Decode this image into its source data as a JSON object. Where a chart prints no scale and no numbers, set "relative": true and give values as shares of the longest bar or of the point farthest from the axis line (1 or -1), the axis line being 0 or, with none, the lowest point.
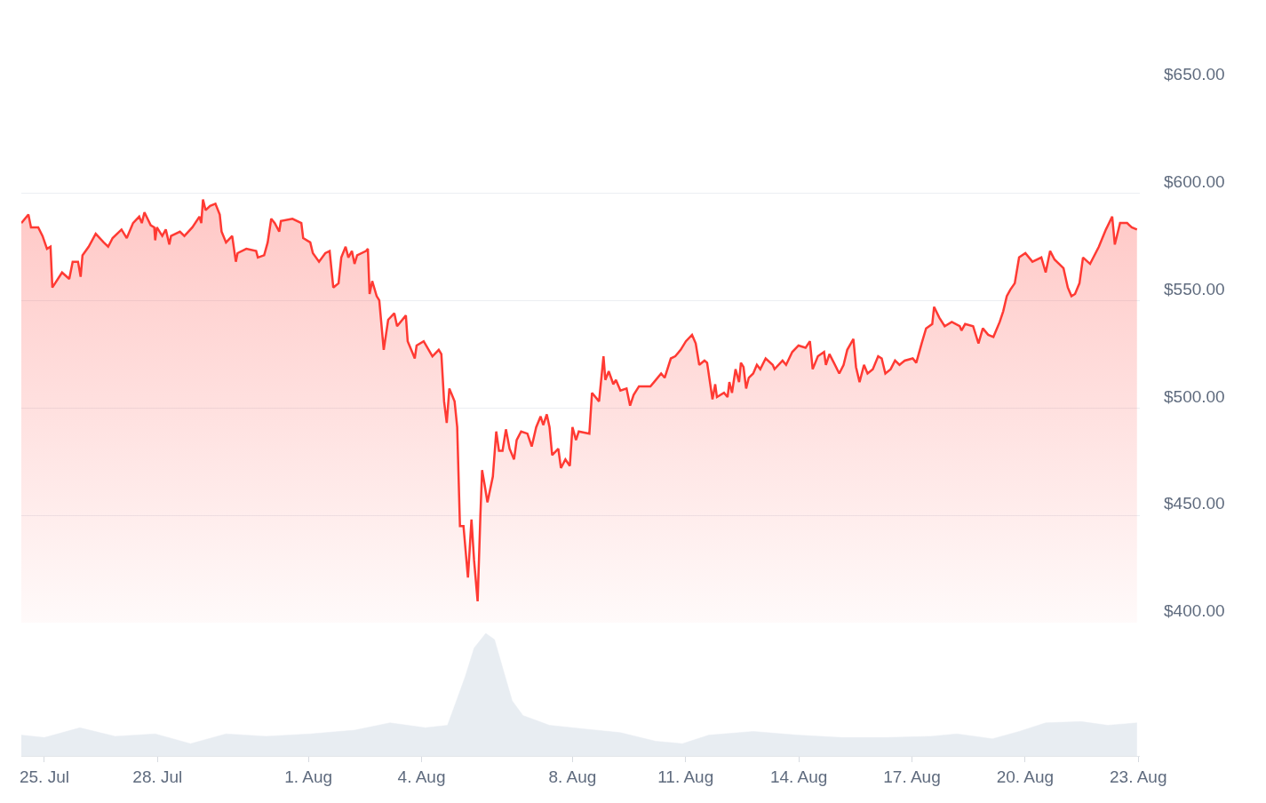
{
  "chart_data": [
    {
      "type": "area",
      "grid": "y",
      "tick_labels": "y",
      "marker": "none",
      "xlim": [
        "--07-24T09:20",
        "--08-23T01:00"
      ],
      "xticks": [
        {
          "value": "--07-25",
          "label": "25. Jul"
        },
        {
          "value": "--07-28",
          "label": "28. Jul"
        },
        {
          "value": "--08-01",
          "label": "1. Aug"
        },
        {
          "value": "--08-04",
          "label": "4. Aug"
        },
        {
          "value": "--08-08",
          "label": "8. Aug"
        },
        {
          "value": "--08-11",
          "label": "11. Aug"
        },
        {
          "value": "--08-14",
          "label": "14. Aug"
        },
        {
          "value": "--08-17",
          "label": "17. Aug"
        },
        {
          "value": "--08-20",
          "label": "20. Aug"
        },
        {
          "value": "--08-23",
          "label": "23. Aug"
        }
      ],
      "ylim": [
        400,
        650
      ],
      "yticks": [
        {
          "value": 400,
          "label": "$400.00"
        },
        {
          "value": 450,
          "label": "$450.00"
        },
        {
          "value": 500,
          "label": "$500.00"
        },
        {
          "value": 550,
          "label": "$550.00"
        },
        {
          "value": 600,
          "label": "$600.00"
        },
        {
          "value": 650,
          "label": "$650.00"
        }
      ],
      "x": [
        "--07-24T09:20",
        "--07-24T13:50",
        "--07-24T15:30",
        "--07-24T20:05",
        "--07-24T22:50",
        "--07-25T01:40",
        "--07-25T03:55",
        "--07-25T05:05",
        "--07-25T11:15",
        "--07-25T15:50",
        "--07-25T18:00",
        "--07-25T21:25",
        "--07-25T23:05",
        "--07-26T00:15",
        "--07-26T04:10",
        "--07-26T08:40",
        "--07-26T13:45",
        "--07-26T16:35",
        "--07-26T19:25",
        "--07-27T01:05",
        "--07-27T04:25",
        "--07-27T08:25",
        "--07-27T12:20",
        "--07-27T14:00",
        "--07-27T15:40",
        "--07-27T19:40",
        "--07-27T21:55",
        "--07-27T22:30",
        "--07-27T23:35",
        "--07-28T03:00",
        "--07-28T05:15",
        "--07-28T07:30",
        "--07-28T08:35",
        "--07-28T14:15",
        "--07-28T17:05",
        "--07-28T22:10",
        "--07-29T02:40",
        "--07-29T03:50",
        "--07-29T04:55",
        "--07-29T06:35",
        "--07-29T09:25",
        "--07-29T12:50",
        "--07-29T15:35",
        "--07-29T16:45",
        "--07-29T19:35",
        "--07-29T23:30",
        "--07-30T01:50",
        "--07-30T02:55",
        "--07-30T08:30",
        "--07-30T14:45",
        "--07-30T15:50",
        "--07-30T19:50",
        "--07-30T22:05",
        "--07-31T00:20",
        "--07-31T02:35",
        "--07-31T05:25",
        "--07-31T06:30",
        "--07-31T13:50",
        "--07-31T19:30",
        "--07-31T20:40",
        "--08-01T01:10",
        "--08-01T02:50",
        "--08-01T06:45",
        "--08-01T10:45",
        "--08-01T13:30",
        "--08-01T15:50",
        "--08-01T19:10",
        "--08-01T20:55",
        "--08-01T23:40",
        "--08-02T01:25",
        "--08-02T03:40",
        "--08-02T05:20",
        "--08-02T07:00",
        "--08-02T12:40",
        "--08-02T13:50",
        "--08-02T14:55",
        "--08-02T16:35",
        "--08-02T19:25",
        "--08-02T21:05",
        "--08-02T23:55",
        "--08-03T02:45",
        "--08-03T06:40",
        "--08-03T08:25",
        "--08-03T14:00",
        "--08-03T15:10",
        "--08-03T18:00",
        "--08-03T19:40",
        "--08-03T20:50",
        "--08-04T01:20",
        "--08-04T06:55",
        "--08-04T10:55",
        "--08-04T12:35",
        "--08-04T14:20",
        "--08-04T16:00",
        "--08-04T17:40",
        "--08-04T21:00",
        "--08-04T22:40",
        "--08-05T00:25",
        "--08-05T02:40",
        "--08-05T05:30",
        "--08-05T07:45",
        "--08-05T09:25",
        "--08-05T11:40",
        "--08-05T13:25",
        "--08-05T14:30",
        "--08-05T16:10",
        "--08-05T17:55",
        "--08-05T21:20",
        "--08-05T23:30",
        "--08-06T01:15",
        "--08-06T03:30",
        "--08-06T05:40",
        "--08-06T08:00",
        "--08-06T10:50",
        "--08-06T12:30",
        "--08-06T15:20",
        "--08-06T19:20",
        "--08-06T22:05",
        "--08-07T00:55",
        "--08-07T03:45",
        "--08-07T05:25",
        "--08-07T07:40",
        "--08-07T09:25",
        "--08-07T11:05",
        "--08-07T15:00",
        "--08-07T16:40",
        "--08-07T19:30",
        "--08-07T22:20",
        "--08-08T00:00",
        "--08-08T02:15",
        "--08-08T04:00",
        "--08-08T10:45",
        "--08-08T12:25",
        "--08-08T16:55",
        "--08-08T19:45",
        "--08-08T20:55",
        "--08-08T23:05",
        "--08-09T02:00",
        "--08-09T03:40",
        "--08-09T06:30",
        "--08-09T10:25",
        "--08-09T12:40",
        "--08-09T14:55",
        "--08-09T18:20",
        "--08-10T01:35",
        "--08-10T03:55",
        "--08-10T08:25",
        "--08-10T10:40",
        "--08-10T14:35",
        "--08-10T17:25",
        "--08-10T20:50",
        "--08-11T00:10",
        "--08-11T04:05",
        "--08-11T06:25",
        "--08-11T08:40",
        "--08-11T12:00",
        "--08-11T13:40",
        "--08-11T17:05",
        "--08-11T18:50",
        "--08-11T19:55",
        "--08-12T00:25",
        "--08-12T02:40",
        "--08-12T03:50",
        "--08-12T05:30",
        "--08-12T07:45",
        "--08-12T10:00",
        "--08-12T11:10",
        "--08-12T12:50",
        "--08-12T14:30",
        "--08-12T16:10",
        "--08-12T19:00",
        "--08-12T21:20",
        "--08-12T23:30",
        "--08-13T02:55",
        "--08-13T07:25",
        "--08-13T08:35",
        "--08-13T13:40",
        "--08-13T15:55",
        "--08-13T19:50",
        "--08-13T23:50",
        "--08-14T04:20",
        "--08-14T07:05",
        "--08-14T08:50",
        "--08-14T12:10",
        "--08-14T16:05",
        "--08-14T17:15",
        "--08-14T19:30",
        "--08-14T22:20",
        "--08-15T01:45",
        "--08-15T04:30",
        "--08-15T06:50",
        "--08-15T10:45",
        "--08-15T12:25",
        "--08-15T14:40",
        "--08-15T17:30",
        "--08-15T19:45",
        "--08-15T23:05",
        "--08-16T02:30",
        "--08-16T04:45",
        "--08-16T07:05",
        "--08-16T10:25",
        "--08-16T13:15",
        "--08-16T16:05",
        "--08-16T19:25",
        "--08-17T00:30",
        "--08-17T02:45",
        "--08-17T06:10",
        "--08-17T09:00",
        "--08-17T12:55",
        "--08-17T14:05",
        "--08-17T17:25",
        "--08-17T20:50",
        "--08-18T01:20",
        "--08-18T06:25",
        "--08-18T07:30",
        "--08-18T09:50",
        "--08-18T14:55",
        "--08-18T18:20",
        "--08-18T21:05",
        "--08-19T00:30",
        "--08-19T03:50",
        "--08-19T07:50",
        "--08-19T10:05",
        "--08-19T12:20",
        "--08-19T14:35",
        "--08-19T17:25",
        "--08-19T20:10",
        "--08-20T00:10",
        "--08-20T04:40",
        "--08-20T10:20",
        "--08-20T13:05",
        "--08-20T15:55",
        "--08-20T18:45",
        "--08-21T00:25",
        "--08-21T03:10",
        "--08-21T05:30",
        "--08-21T07:45",
        "--08-21T10:35",
        "--08-21T12:50",
        "--08-21T17:20",
        "--08-21T22:55",
        "--08-22T03:25",
        "--08-22T07:25",
        "--08-22T09:05",
        "--08-22T12:25",
        "--08-22T16:55",
        "--08-22T19:50",
        "--08-22T23:10"
      ],
      "series": [
        {
          "color": "#ff3a33",
          "values": [
            586,
            590,
            584,
            584,
            580,
            574,
            575,
            556,
            563,
            560,
            568,
            568,
            561,
            571,
            575,
            581,
            577,
            575,
            579,
            583,
            579,
            586,
            589,
            586,
            591,
            585,
            584,
            578,
            584,
            580,
            583,
            576,
            580,
            582,
            580,
            584,
            589,
            586,
            597,
            592,
            594,
            595,
            590,
            582,
            577,
            580,
            568,
            572,
            574,
            573,
            570,
            571,
            577,
            588,
            586,
            582,
            587,
            588,
            586,
            579,
            577,
            572,
            568,
            572,
            573,
            556,
            558,
            570,
            575,
            570,
            573,
            567,
            571,
            573,
            574,
            553,
            559,
            552,
            550,
            527,
            541,
            544,
            538,
            543,
            531,
            526,
            523,
            529,
            531,
            524,
            527,
            525,
            503,
            493,
            509,
            503,
            491,
            445,
            445,
            421,
            448,
            429,
            410,
            450,
            471,
            464,
            456,
            468,
            489,
            480,
            480,
            490,
            481,
            476,
            485,
            489,
            488,
            482,
            491,
            496,
            492,
            497,
            491,
            478,
            481,
            472,
            476,
            473,
            491,
            485,
            489,
            488,
            507,
            503,
            524,
            513,
            517,
            511,
            513,
            508,
            509,
            501,
            506,
            510,
            510,
            512,
            516,
            514,
            523,
            524,
            527,
            531,
            534,
            530,
            520,
            522,
            521,
            504,
            511,
            505,
            507,
            505,
            512,
            507,
            518,
            512,
            521,
            519,
            509,
            514,
            516,
            520,
            518,
            523,
            520,
            518,
            522,
            520,
            526,
            529,
            528,
            531,
            518,
            524,
            526,
            520,
            525,
            521,
            516,
            520,
            527,
            532,
            519,
            512,
            520,
            516,
            518,
            524,
            523,
            516,
            518,
            522,
            520,
            522,
            523,
            521,
            530,
            537,
            539,
            547,
            542,
            538,
            540,
            538,
            536,
            539,
            538,
            530,
            537,
            534,
            533,
            540,
            545,
            552,
            555,
            558,
            570,
            572,
            568,
            570,
            563,
            573,
            569,
            565,
            556,
            552,
            553,
            558,
            570,
            567,
            575,
            583,
            589,
            576,
            586,
            586,
            584,
            583
          ]
        }
      ]
    },
    {
      "type": "area",
      "relative": true,
      "grid": false,
      "tick_labels": "x",
      "marker": "none",
      "xlim": [
        "--07-24T09:20",
        "--08-23T01:00"
      ],
      "xticks": [
        {
          "value": "--07-25",
          "label": "25. Jul"
        },
        {
          "value": "--07-28",
          "label": "28. Jul"
        },
        {
          "value": "--08-01",
          "label": "1. Aug"
        },
        {
          "value": "--08-04",
          "label": "4. Aug"
        },
        {
          "value": "--08-08",
          "label": "8. Aug"
        },
        {
          "value": "--08-11",
          "label": "11. Aug"
        },
        {
          "value": "--08-14",
          "label": "14. Aug"
        },
        {
          "value": "--08-17",
          "label": "17. Aug"
        },
        {
          "value": "--08-20",
          "label": "20. Aug"
        },
        {
          "value": "--08-23",
          "label": "23. Aug"
        }
      ],
      "x": [
        "--07-24T09:20",
        "--07-25T00:00",
        "--07-25T22:35",
        "--07-26T21:05",
        "--07-27T22:30",
        "--07-28T21:00",
        "--07-29T19:35",
        "--07-30T21:00",
        "--08-01T01:10",
        "--08-02T05:20",
        "--08-03T03:55",
        "--08-04T02:25",
        "--08-04T16:30",
        "--08-04T22:10",
        "--08-05T03:50",
        "--08-05T09:25",
        "--08-05T16:50",
        "--08-05T22:25",
        "--08-06T04:00",
        "--08-06T09:40",
        "--08-06T16:30",
        "--08-07T09:25",
        "--08-08T07:55",
        "--08-09T06:30",
        "--08-10T05:00",
        "--08-10T21:55",
        "--08-11T14:50",
        "--08-12T19:00",
        "--08-13T23:15",
        "--08-15T03:25",
        "--08-16T07:35",
        "--08-17T11:50",
        "--08-18T04:40",
        "--08-19T03:15",
        "--08-19T20:10",
        "--08-20T13:05",
        "--08-21T11:40",
        "--08-22T04:35",
        "--08-22T23:10"
      ],
      "series": [
        {
          "color": "#e8edf2",
          "values": [
            0.17,
            0.15,
            0.23,
            0.16,
            0.18,
            0.1,
            0.18,
            0.16,
            0.18,
            0.21,
            0.27,
            0.23,
            0.25,
            0.45,
            0.65,
            0.88,
            1,
            0.95,
            0.7,
            0.45,
            0.33,
            0.25,
            0.22,
            0.19,
            0.12,
            0.1,
            0.17,
            0.2,
            0.17,
            0.15,
            0.15,
            0.16,
            0.18,
            0.14,
            0.2,
            0.27,
            0.28,
            0.25,
            0.27
          ]
        }
      ]
    }
  ]
}
